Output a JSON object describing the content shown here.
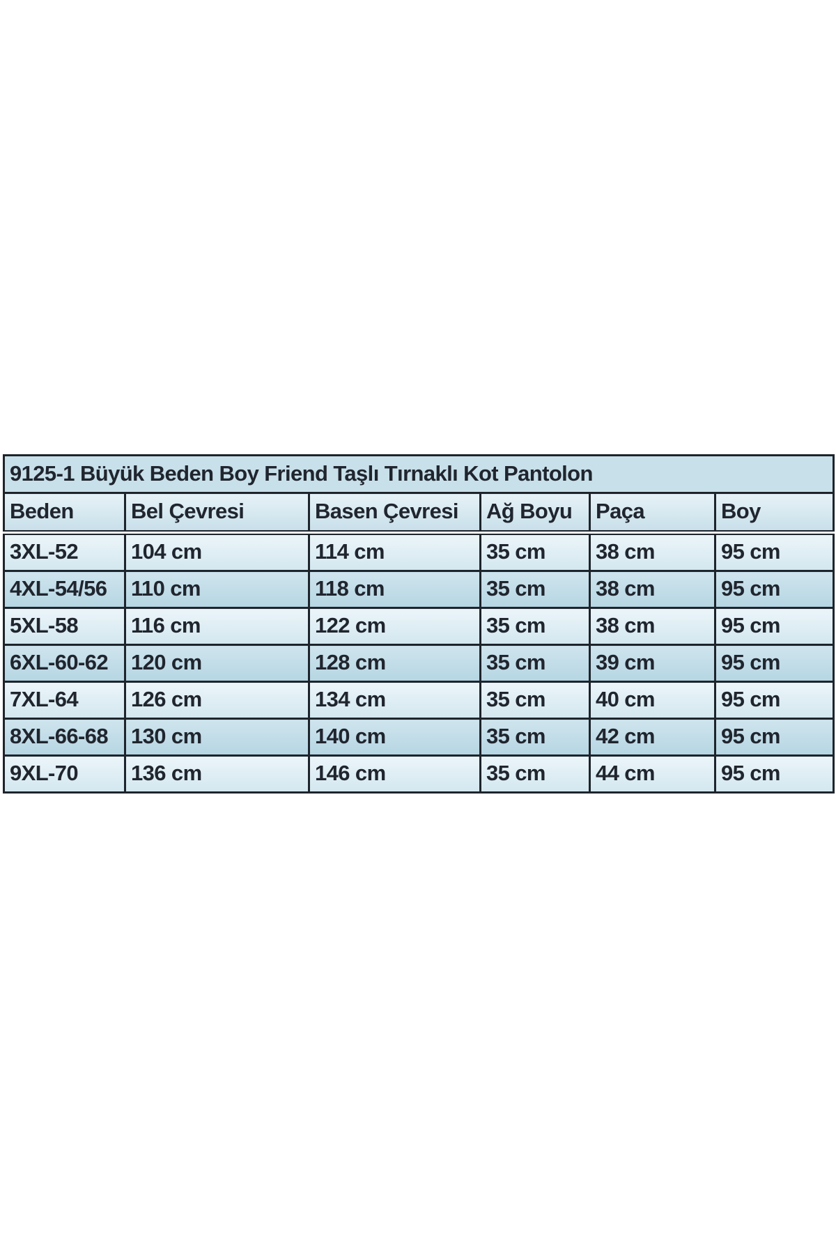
{
  "chart_data": {
    "type": "table",
    "title": "9125-1 Büyük Beden Boy Friend Taşlı Tırnaklı Kot Pantolon",
    "columns": [
      "Beden",
      "Bel Çevresi",
      "Basen Çevresi",
      "Ağ Boyu",
      "Paça",
      "Boy"
    ],
    "rows": [
      [
        "3XL-52",
        "104 cm",
        "114 cm",
        "35 cm",
        "38 cm",
        "95 cm"
      ],
      [
        "4XL-54/56",
        "110 cm",
        "118 cm",
        "35 cm",
        "38 cm",
        "95 cm"
      ],
      [
        "5XL-58",
        "116 cm",
        "122 cm",
        "35 cm",
        "38 cm",
        "95 cm"
      ],
      [
        "6XL-60-62",
        "120 cm",
        "128 cm",
        "35 cm",
        "39 cm",
        "95 cm"
      ],
      [
        "7XL-64",
        "126 cm",
        "134 cm",
        "35 cm",
        "40 cm",
        "95 cm"
      ],
      [
        "8XL-66-68",
        "130 cm",
        "140 cm",
        "35 cm",
        "42 cm",
        "95 cm"
      ],
      [
        "9XL-70",
        "136 cm",
        "146 cm",
        "35 cm",
        "44 cm",
        "95 cm"
      ]
    ],
    "layout": {
      "striping": "odd rows light, even rows darker blue",
      "grid": "on",
      "header_separator": "double line"
    }
  },
  "colors": {
    "border": "#1e242b",
    "text": "#20252e",
    "title_bg": "#c8e0ea",
    "header_top": "#e6f2f7",
    "header_bottom": "#c8dfe9",
    "row_light_top": "#ebf5f9",
    "row_light_bottom": "#d3e7ef",
    "row_dark_top": "#cfe4ed",
    "row_dark_bottom": "#b5d6e3",
    "page_background": "#ffffff"
  }
}
